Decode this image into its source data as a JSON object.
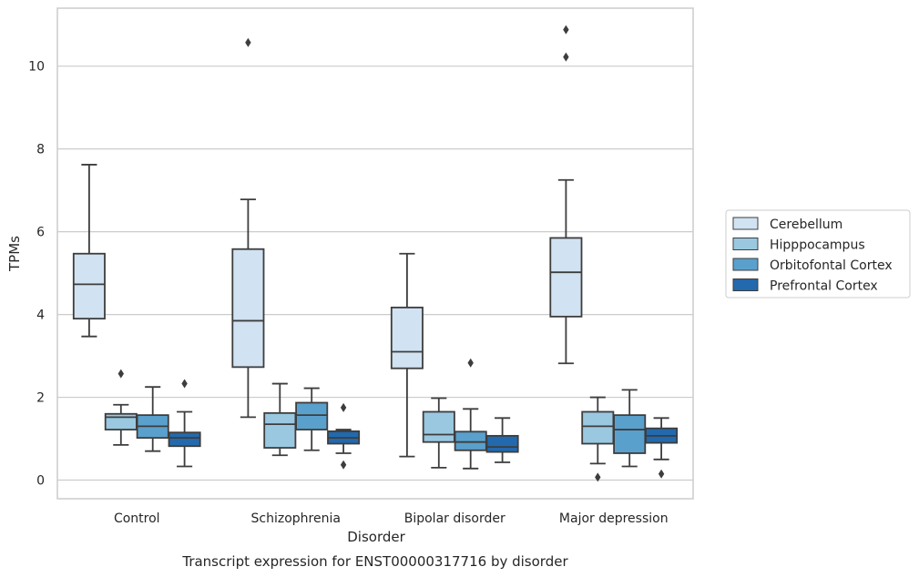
{
  "chart_data": {
    "type": "box",
    "title": "",
    "caption": "Transcript expression for ENST00000317716 by disorder",
    "xlabel": "Disorder",
    "ylabel": "TPMs",
    "ylim": [
      -0.45,
      11.4
    ],
    "yticks": [
      0,
      2,
      4,
      6,
      8,
      10
    ],
    "grid": "horizontal",
    "legend_position": "right",
    "categories": [
      "Control",
      "Schizophrenia",
      "Bipolar disorder",
      "Major depression"
    ],
    "series": [
      {
        "name": "Cerebellum",
        "color": "#d1e2f2",
        "boxes": [
          {
            "min": 3.47,
            "q1": 3.9,
            "median": 4.73,
            "q3": 5.47,
            "max": 7.62,
            "outliers": []
          },
          {
            "min": 1.52,
            "q1": 2.73,
            "median": 3.85,
            "q3": 5.58,
            "max": 6.78,
            "outliers": [
              10.57
            ]
          },
          {
            "min": 0.57,
            "q1": 2.7,
            "median": 3.1,
            "q3": 4.17,
            "max": 5.47,
            "outliers": []
          },
          {
            "min": 2.82,
            "q1": 3.95,
            "median": 5.02,
            "q3": 5.85,
            "max": 7.25,
            "outliers": [
              10.22,
              10.88
            ]
          }
        ]
      },
      {
        "name": "Hipppocampus",
        "color": "#9ac8e0",
        "boxes": [
          {
            "min": 0.85,
            "q1": 1.22,
            "median": 1.52,
            "q3": 1.6,
            "max": 1.82,
            "outliers": [
              2.57
            ]
          },
          {
            "min": 0.6,
            "q1": 0.78,
            "median": 1.35,
            "q3": 1.62,
            "max": 2.33,
            "outliers": []
          },
          {
            "min": 0.3,
            "q1": 0.92,
            "median": 1.1,
            "q3": 1.65,
            "max": 1.98,
            "outliers": []
          },
          {
            "min": 0.4,
            "q1": 0.88,
            "median": 1.3,
            "q3": 1.65,
            "max": 2.0,
            "outliers": [
              0.07
            ]
          }
        ]
      },
      {
        "name": "Orbitofontal Cortex",
        "color": "#5aa0cd",
        "boxes": [
          {
            "min": 0.7,
            "q1": 1.02,
            "median": 1.3,
            "q3": 1.57,
            "max": 2.25,
            "outliers": []
          },
          {
            "min": 0.72,
            "q1": 1.22,
            "median": 1.57,
            "q3": 1.87,
            "max": 2.22,
            "outliers": []
          },
          {
            "min": 0.28,
            "q1": 0.72,
            "median": 0.92,
            "q3": 1.17,
            "max": 1.72,
            "outliers": [
              2.83
            ]
          },
          {
            "min": 0.33,
            "q1": 0.65,
            "median": 1.22,
            "q3": 1.57,
            "max": 2.18,
            "outliers": []
          }
        ]
      },
      {
        "name": "Prefrontal Cortex",
        "color": "#2369ad",
        "boxes": [
          {
            "min": 0.33,
            "q1": 0.82,
            "median": 1.02,
            "q3": 1.15,
            "max": 1.65,
            "outliers": [
              2.33
            ]
          },
          {
            "min": 0.65,
            "q1": 0.88,
            "median": 1.02,
            "q3": 1.18,
            "max": 1.22,
            "outliers": [
              1.75,
              0.37
            ]
          },
          {
            "min": 0.43,
            "q1": 0.68,
            "median": 0.8,
            "q3": 1.07,
            "max": 1.5,
            "outliers": []
          },
          {
            "min": 0.5,
            "q1": 0.9,
            "median": 1.07,
            "q3": 1.25,
            "max": 1.5,
            "outliers": [
              0.15
            ]
          }
        ]
      }
    ]
  }
}
